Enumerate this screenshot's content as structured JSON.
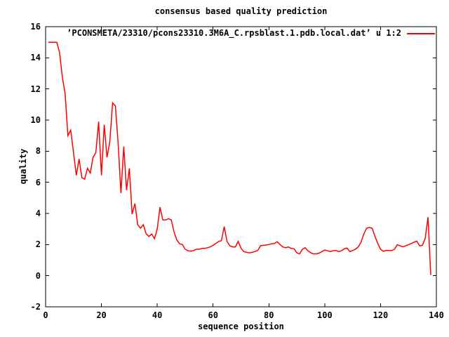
{
  "window": {
    "background": "#ffffff",
    "foreground": "#000000"
  },
  "chart": {
    "title": "consensus based quality prediction",
    "xlabel": "sequence position",
    "ylabel": "quality",
    "legend": {
      "label": "’PCONSMETA/23310/pcons23310.3M6A_C.rpsblast.1.pdb.local.dat’ u 1:2",
      "line_color": "#ff0000"
    }
  },
  "chart_data": {
    "type": "line",
    "title": "consensus based quality prediction",
    "xlabel": "sequence position",
    "ylabel": "quality",
    "xlim": [
      0,
      140
    ],
    "ylim": [
      -2,
      16
    ],
    "x_ticks": [
      0,
      20,
      40,
      60,
      80,
      100,
      120,
      140
    ],
    "y_ticks": [
      -2,
      0,
      2,
      4,
      6,
      8,
      10,
      12,
      14,
      16
    ],
    "x_tick_labels": [
      "0",
      "20",
      "40",
      "60",
      "80",
      "100",
      "120",
      "140"
    ],
    "y_tick_labels": [
      "-2",
      "0",
      "2",
      "4",
      "6",
      "8",
      "10",
      "12",
      "14",
      "16"
    ],
    "grid": false,
    "legend_position": "top-right-inside",
    "series": [
      {
        "name": "’PCONSMETA/23310/pcons23310.3M6A_C.rpsblast.1.pdb.local.dat’ u 1:2",
        "color": "#ff0000",
        "x": [
          1,
          2,
          3,
          4,
          5,
          6,
          7,
          8,
          9,
          10,
          11,
          12,
          13,
          14,
          15,
          16,
          17,
          18,
          19,
          20,
          21,
          22,
          23,
          24,
          25,
          26,
          27,
          28,
          29,
          30,
          31,
          32,
          33,
          34,
          35,
          36,
          37,
          38,
          39,
          40,
          41,
          42,
          43,
          44,
          45,
          46,
          47,
          48,
          49,
          50,
          51,
          52,
          53,
          54,
          55,
          56,
          57,
          58,
          59,
          60,
          61,
          62,
          63,
          64,
          65,
          66,
          67,
          68,
          69,
          70,
          71,
          72,
          73,
          74,
          75,
          76,
          77,
          78,
          79,
          80,
          81,
          82,
          83,
          84,
          85,
          86,
          87,
          88,
          89,
          90,
          91,
          92,
          93,
          94,
          95,
          96,
          97,
          98,
          99,
          100,
          101,
          102,
          103,
          104,
          105,
          106,
          107,
          108,
          109,
          110,
          111,
          112,
          113,
          114,
          115,
          116,
          117,
          118,
          119,
          120,
          121,
          122,
          123,
          124,
          125,
          126,
          127,
          128,
          129,
          130,
          131,
          132,
          133,
          134,
          135,
          136,
          137,
          138
        ],
        "y": [
          15,
          15,
          15,
          15,
          14.35,
          12.75,
          11.7,
          9.0,
          9.35,
          7.9,
          6.45,
          7.5,
          6.3,
          6.2,
          6.9,
          6.6,
          7.6,
          7.9,
          9.9,
          6.45,
          9.7,
          7.6,
          8.6,
          11.1,
          10.9,
          8.5,
          5.3,
          8.3,
          5.5,
          6.9,
          3.95,
          4.63,
          3.28,
          3.05,
          3.28,
          2.7,
          2.52,
          2.68,
          2.38,
          3.0,
          4.4,
          3.58,
          3.58,
          3.66,
          3.6,
          2.82,
          2.3,
          2.05,
          2.0,
          1.7,
          1.6,
          1.58,
          1.6,
          1.7,
          1.7,
          1.75,
          1.75,
          1.8,
          1.85,
          1.95,
          2.07,
          2.2,
          2.25,
          3.15,
          2.2,
          1.92,
          1.85,
          1.85,
          2.2,
          1.77,
          1.55,
          1.5,
          1.47,
          1.5,
          1.55,
          1.62,
          1.92,
          1.95,
          1.97,
          2.0,
          2.05,
          2.07,
          2.18,
          2.0,
          1.85,
          1.8,
          1.85,
          1.75,
          1.73,
          1.47,
          1.4,
          1.7,
          1.8,
          1.6,
          1.47,
          1.4,
          1.4,
          1.45,
          1.55,
          1.65,
          1.6,
          1.55,
          1.6,
          1.62,
          1.55,
          1.6,
          1.72,
          1.77,
          1.55,
          1.62,
          1.7,
          1.85,
          2.15,
          2.68,
          3.05,
          3.1,
          3.05,
          2.52,
          2.07,
          1.7,
          1.57,
          1.62,
          1.62,
          1.62,
          1.7,
          1.99,
          1.92,
          1.85,
          1.92,
          1.99,
          2.07,
          2.15,
          2.22,
          1.92,
          1.95,
          2.4,
          3.76,
          0.05
        ]
      }
    ]
  }
}
